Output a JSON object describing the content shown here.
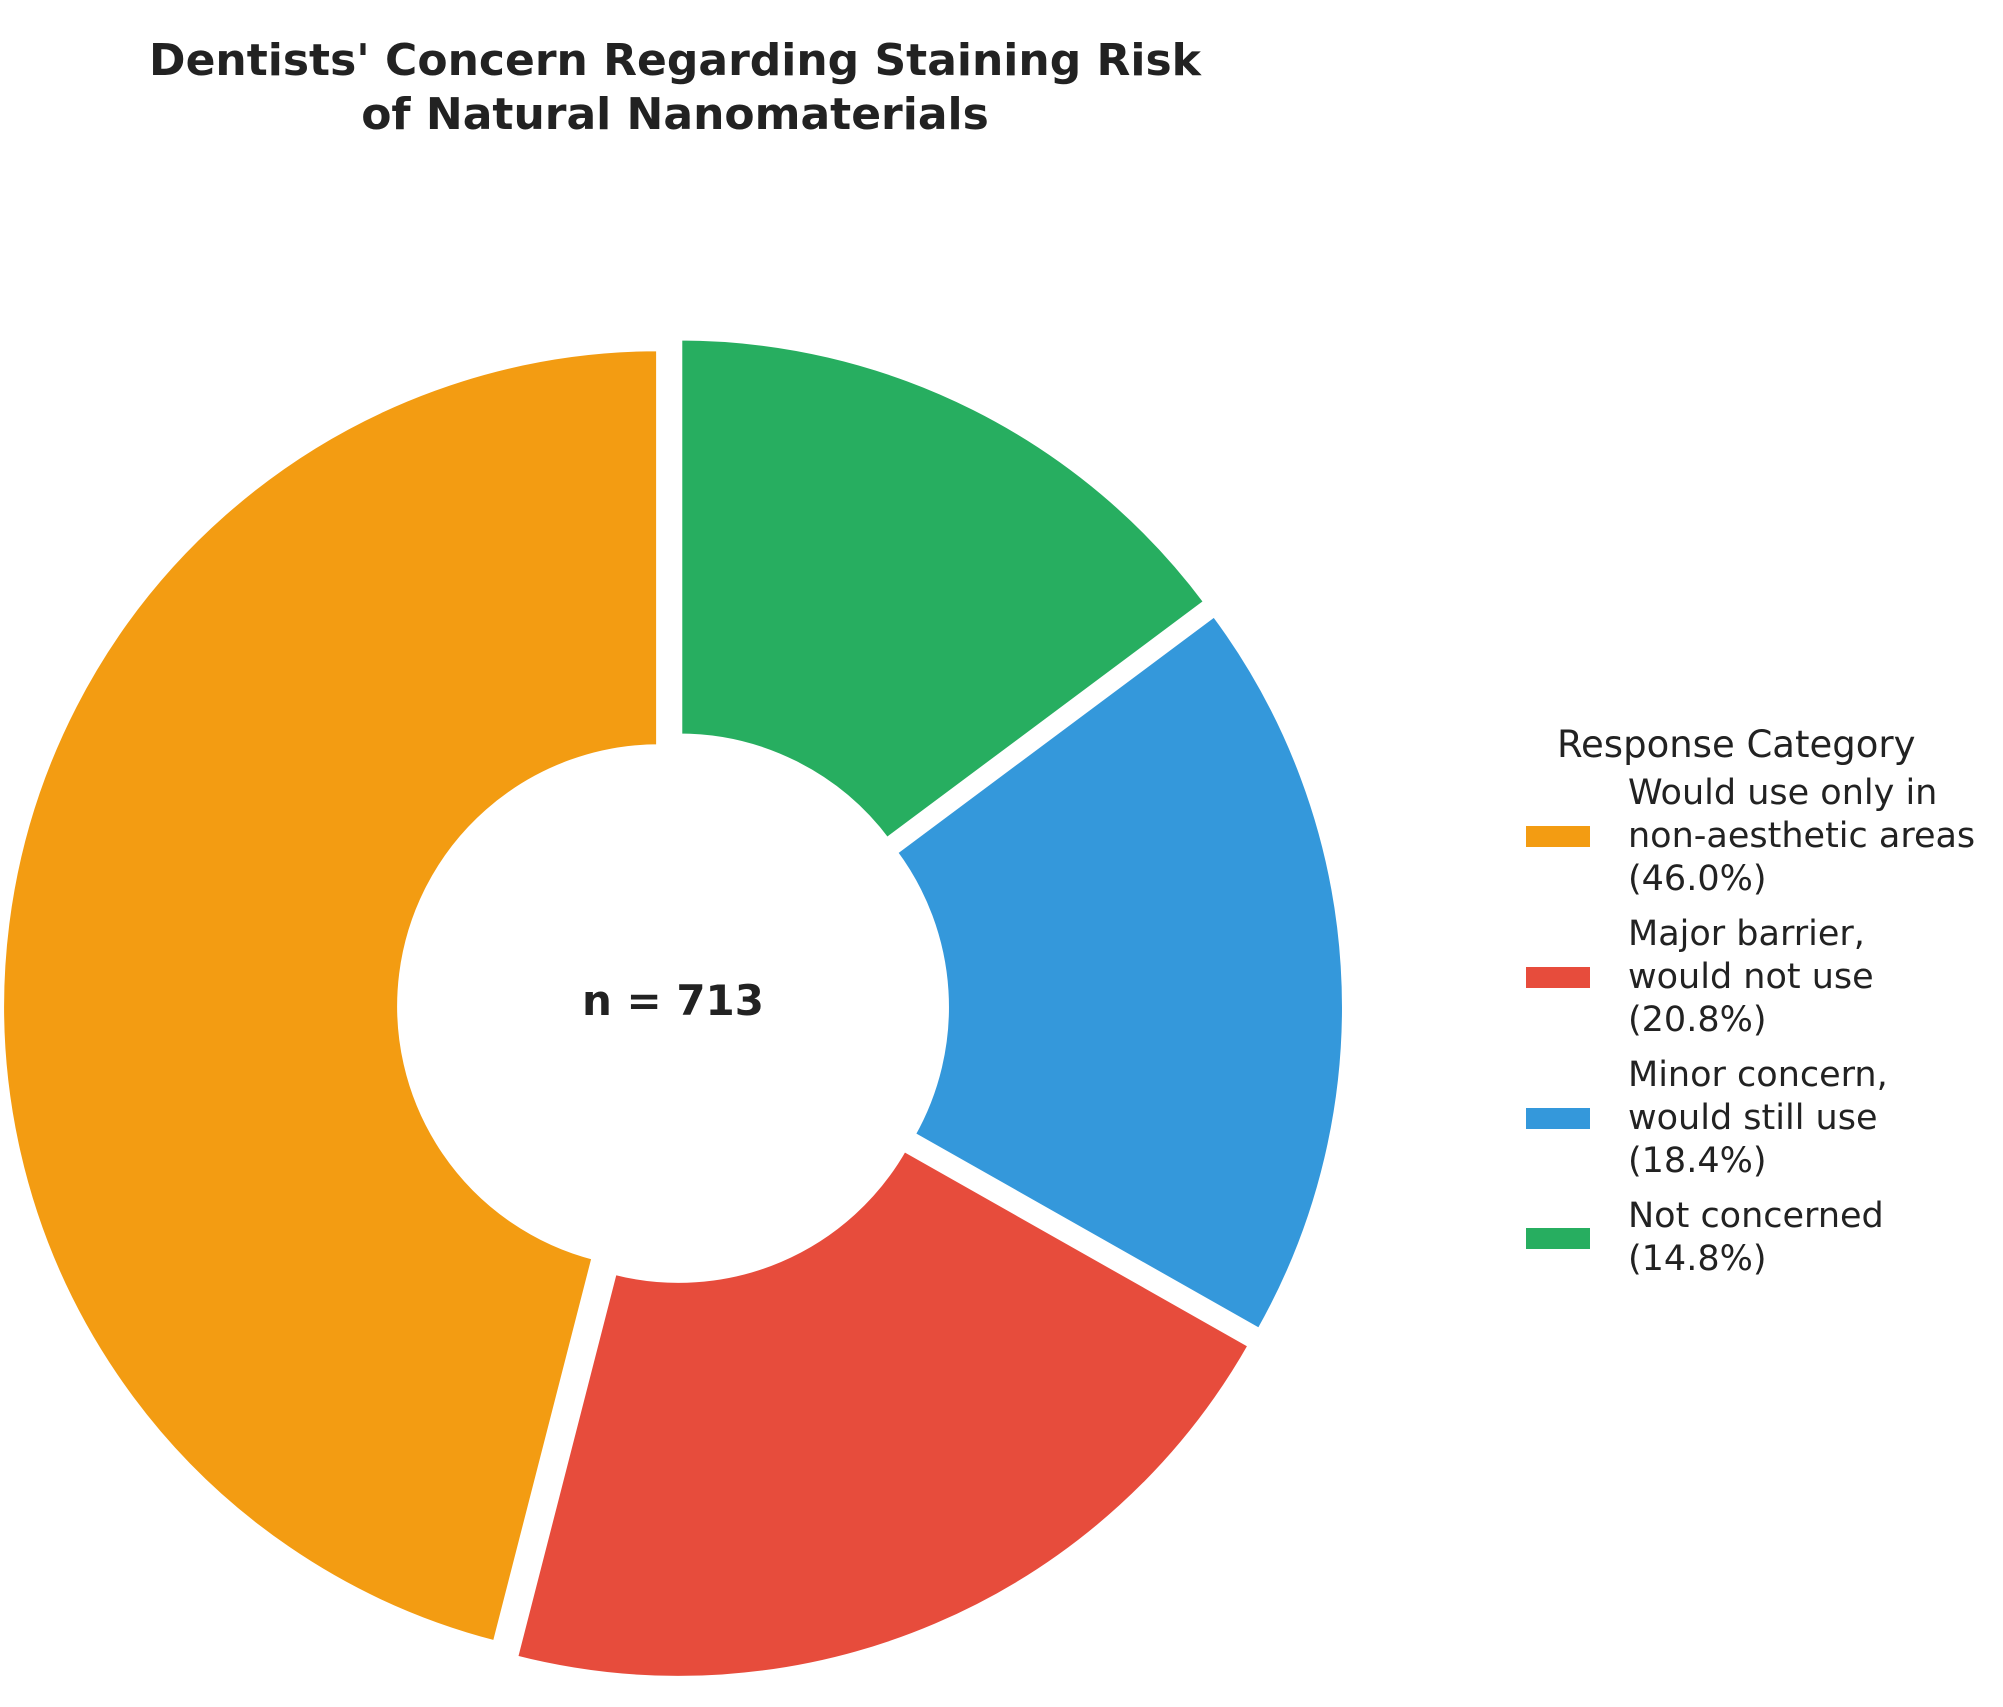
{
  "chart_data": {
    "type": "pie",
    "variant": "donut",
    "title_lines": [
      "Dentists' Concern Regarding Staining Risk",
      "of Natural Nanomaterials"
    ],
    "center_label": "n = 713",
    "legend_title": "Response Category",
    "legend_placement": "right",
    "slices": [
      {
        "label_lines": [
          "Would use only in",
          "non-aesthetic areas",
          "(46.0%)"
        ],
        "value": 46.0,
        "color": "#f39c12"
      },
      {
        "label_lines": [
          "Major barrier,",
          "would not use",
          "(20.8%)"
        ],
        "value": 20.8,
        "color": "#e74c3c"
      },
      {
        "label_lines": [
          "Minor concern,",
          "would still use",
          "(18.4%)"
        ],
        "value": 18.4,
        "color": "#3498db"
      },
      {
        "label_lines": [
          "Not concerned",
          "(14.8%)"
        ],
        "value": 14.8,
        "color": "#27ae60"
      }
    ]
  }
}
